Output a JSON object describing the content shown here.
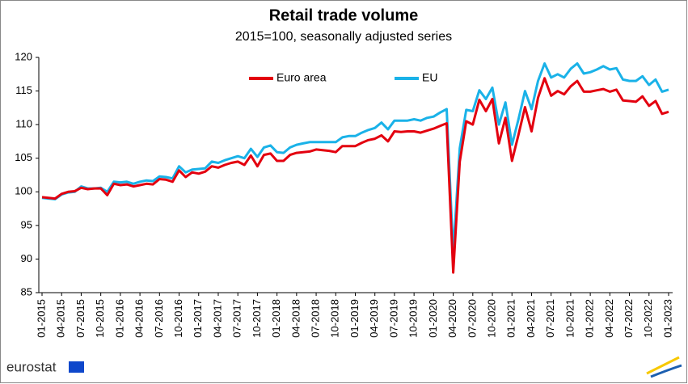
{
  "chart_data": {
    "type": "line",
    "title": "Retail trade volume",
    "subtitle": "2015=100, seasonally adjusted series",
    "logo": "eurostat",
    "categories": [
      "01-2015",
      null,
      null,
      "04-2015",
      null,
      null,
      "07-2015",
      null,
      null,
      "10-2015",
      null,
      null,
      "01-2016",
      null,
      null,
      "04-2016",
      null,
      null,
      "07-2016",
      null,
      null,
      "10-2016",
      null,
      null,
      "01-2017",
      null,
      null,
      "04-2017",
      null,
      null,
      "07-2017",
      null,
      null,
      "10-2017",
      null,
      null,
      "01-2018",
      null,
      null,
      "04-2018",
      null,
      null,
      "07-2018",
      null,
      null,
      "10-2018",
      null,
      null,
      "01-2019",
      null,
      null,
      "04-2019",
      null,
      null,
      "07-2019",
      null,
      null,
      "10-2019",
      null,
      null,
      "01-2020",
      null,
      null,
      "04-2020",
      null,
      null,
      "07-2020",
      null,
      null,
      "10-2020",
      null,
      null,
      "01-2021",
      null,
      null,
      "04-2021",
      null,
      null,
      "07-2021",
      null,
      null,
      "10-2021",
      null,
      null,
      "01-2022",
      null,
      null,
      "04-2022",
      null,
      null,
      "07-2022",
      null,
      null,
      "10-2022",
      null,
      null,
      "01-2023"
    ],
    "series": [
      {
        "name": "Euro area",
        "color": "#e3000f",
        "values": [
          99.2,
          99.1,
          99.0,
          99.7,
          100.0,
          100.1,
          100.6,
          100.4,
          100.5,
          100.5,
          99.5,
          101.2,
          101.0,
          101.1,
          100.8,
          101.0,
          101.2,
          101.1,
          101.9,
          101.8,
          101.5,
          103.2,
          102.2,
          102.9,
          102.7,
          103.0,
          103.8,
          103.6,
          104.0,
          104.3,
          104.5,
          104.0,
          105.4,
          103.8,
          105.5,
          105.7,
          104.6,
          104.6,
          105.5,
          105.8,
          105.9,
          106.0,
          106.3,
          106.2,
          106.1,
          105.9,
          106.8,
          106.8,
          106.8,
          107.3,
          107.7,
          107.9,
          108.4,
          107.5,
          109.0,
          108.9,
          109.0,
          109.0,
          108.8,
          109.1,
          109.4,
          109.8,
          110.2,
          88.0,
          104.5,
          110.5,
          110.0,
          113.7,
          112.0,
          113.8,
          107.2,
          111.0,
          104.6,
          108.5,
          112.6,
          109.0,
          114.0,
          116.9,
          114.3,
          115.0,
          114.5,
          115.7,
          116.5,
          114.9,
          114.9,
          115.1,
          115.3,
          114.9,
          115.2,
          113.6,
          113.5,
          113.4,
          114.2,
          112.8,
          113.5,
          111.6,
          111.9
        ]
      },
      {
        "name": "EU",
        "color": "#1ab2e8",
        "values": [
          99.1,
          99.0,
          98.9,
          99.6,
          99.9,
          100.0,
          100.8,
          100.5,
          100.5,
          100.6,
          100.0,
          101.5,
          101.4,
          101.5,
          101.2,
          101.5,
          101.7,
          101.6,
          102.3,
          102.2,
          102.0,
          103.8,
          102.9,
          103.3,
          103.4,
          103.5,
          104.5,
          104.3,
          104.7,
          105.0,
          105.3,
          105.0,
          106.4,
          105.2,
          106.6,
          106.9,
          105.9,
          105.8,
          106.6,
          107.0,
          107.2,
          107.4,
          107.4,
          107.4,
          107.4,
          107.4,
          108.1,
          108.3,
          108.3,
          108.8,
          109.2,
          109.5,
          110.3,
          109.3,
          110.6,
          110.6,
          110.6,
          110.8,
          110.6,
          111.0,
          111.2,
          111.8,
          112.3,
          90.9,
          106.5,
          112.2,
          112.0,
          115.1,
          113.8,
          115.5,
          110.0,
          113.3,
          107.0,
          110.8,
          115.0,
          112.3,
          116.5,
          119.1,
          117.0,
          117.5,
          117.0,
          118.3,
          119.1,
          117.6,
          117.8,
          118.2,
          118.7,
          118.2,
          118.4,
          116.7,
          116.5,
          116.5,
          117.2,
          115.9,
          116.7,
          114.9,
          115.2
        ]
      }
    ],
    "ylim": [
      85,
      120
    ],
    "yticks": [
      85,
      90,
      95,
      100,
      105,
      110,
      115,
      120
    ],
    "grid": false,
    "legend": "top"
  }
}
